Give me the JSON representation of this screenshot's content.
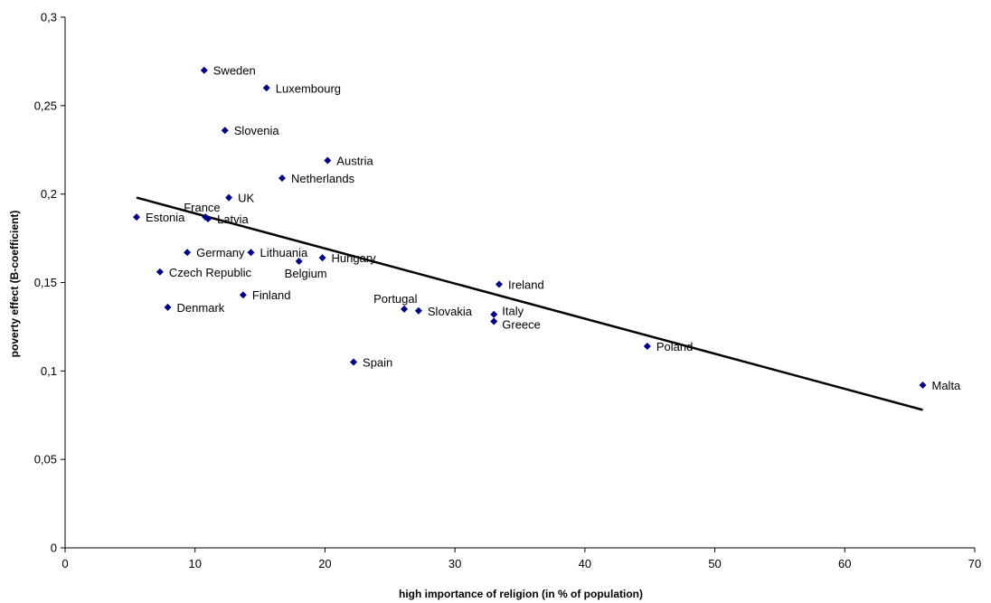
{
  "chart_data": {
    "type": "scatter",
    "title": "",
    "xlabel": "high importance of religion (in % of population)",
    "ylabel": "poverty effect (B-coefficient)",
    "xlim": [
      0,
      70
    ],
    "ylim": [
      0,
      0.3
    ],
    "x_ticks": [
      0,
      10,
      20,
      30,
      40,
      50,
      60,
      70
    ],
    "x_tick_labels": [
      "0",
      "10",
      "20",
      "30",
      "40",
      "50",
      "60",
      "70"
    ],
    "y_ticks": [
      0,
      0.05,
      0.1,
      0.15,
      0.2,
      0.25,
      0.3
    ],
    "y_tick_labels": [
      "0",
      "0,05",
      "0,1",
      "0,15",
      "0,2",
      "0,25",
      "0,3"
    ],
    "grid": false,
    "legend": "none",
    "marker_color": "#000080",
    "trendline": {
      "type": "linear",
      "color": "#000000",
      "start": [
        5.5,
        0.198
      ],
      "end": [
        66,
        0.078
      ]
    },
    "points": [
      {
        "label": "Sweden",
        "x": 10.7,
        "y": 0.27
      },
      {
        "label": "Luxembourg",
        "x": 15.5,
        "y": 0.26
      },
      {
        "label": "Slovenia",
        "x": 12.3,
        "y": 0.236
      },
      {
        "label": "Austria",
        "x": 20.2,
        "y": 0.219
      },
      {
        "label": "Netherlands",
        "x": 16.7,
        "y": 0.209
      },
      {
        "label": "UK",
        "x": 12.6,
        "y": 0.198
      },
      {
        "label": "France",
        "x": 10.8,
        "y": 0.187
      },
      {
        "label": "Latvia",
        "x": 11.0,
        "y": 0.186
      },
      {
        "label": "Estonia",
        "x": 5.5,
        "y": 0.187
      },
      {
        "label": "Germany",
        "x": 9.4,
        "y": 0.167
      },
      {
        "label": "Lithuania",
        "x": 14.3,
        "y": 0.167
      },
      {
        "label": "Hungary",
        "x": 19.8,
        "y": 0.164
      },
      {
        "label": "Belgium",
        "x": 18.0,
        "y": 0.162
      },
      {
        "label": "Czech Republic",
        "x": 7.3,
        "y": 0.156
      },
      {
        "label": "Ireland",
        "x": 33.4,
        "y": 0.149
      },
      {
        "label": "Finland",
        "x": 13.7,
        "y": 0.143
      },
      {
        "label": "Denmark",
        "x": 7.9,
        "y": 0.136
      },
      {
        "label": "Portugal",
        "x": 26.1,
        "y": 0.135
      },
      {
        "label": "Slovakia",
        "x": 27.2,
        "y": 0.134
      },
      {
        "label": "Italy",
        "x": 33.0,
        "y": 0.132
      },
      {
        "label": "Greece",
        "x": 33.0,
        "y": 0.128
      },
      {
        "label": "Poland",
        "x": 44.8,
        "y": 0.114
      },
      {
        "label": "Spain",
        "x": 22.2,
        "y": 0.105
      },
      {
        "label": "Malta",
        "x": 66.0,
        "y": 0.092
      }
    ]
  }
}
